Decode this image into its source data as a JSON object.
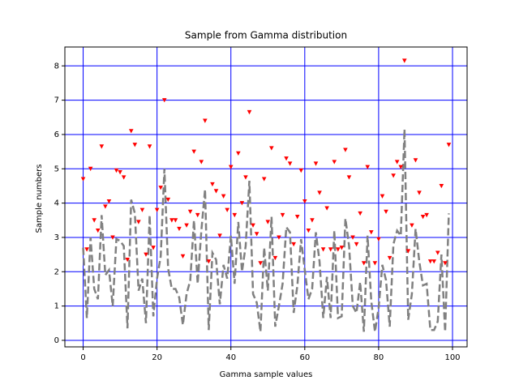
{
  "chart_data": {
    "type": "line",
    "title": "Sample from Gamma distribution",
    "xlabel": "Gamma sample values",
    "ylabel": "Sample numbers",
    "x": [
      0,
      1,
      2,
      3,
      4,
      5,
      6,
      7,
      8,
      9,
      10,
      11,
      12,
      13,
      14,
      15,
      16,
      17,
      18,
      19,
      20,
      21,
      22,
      23,
      24,
      25,
      26,
      27,
      28,
      29,
      30,
      31,
      32,
      33,
      34,
      35,
      36,
      37,
      38,
      39,
      40,
      41,
      42,
      43,
      44,
      45,
      46,
      47,
      48,
      49,
      50,
      51,
      52,
      53,
      54,
      55,
      56,
      57,
      58,
      59,
      60,
      61,
      62,
      63,
      64,
      65,
      66,
      67,
      68,
      69,
      70,
      71,
      72,
      73,
      74,
      75,
      76,
      77,
      78,
      79,
      80,
      81,
      82,
      83,
      84,
      85,
      86,
      87,
      88,
      89,
      90,
      91,
      92,
      93,
      94,
      95,
      96,
      97,
      98,
      99
    ],
    "series": [
      {
        "color": "gray",
        "linestyle": "dashed",
        "values": [
          2.7,
          0.65,
          3.0,
          1.5,
          1.2,
          3.65,
          1.9,
          2.05,
          1.0,
          2.95,
          2.9,
          2.75,
          0.35,
          4.1,
          3.7,
          1.45,
          1.8,
          0.5,
          3.65,
          0.7,
          1.8,
          2.45,
          5.0,
          2.1,
          1.5,
          1.5,
          1.25,
          0.45,
          1.35,
          1.75,
          3.5,
          1.65,
          3.2,
          4.4,
          0.3,
          2.55,
          2.35,
          1.05,
          2.2,
          1.8,
          3.05,
          1.65,
          3.45,
          2.0,
          2.75,
          4.65,
          1.35,
          1.1,
          0.25,
          2.7,
          1.45,
          3.6,
          0.4,
          1.0,
          1.65,
          3.3,
          3.15,
          0.8,
          1.6,
          2.95,
          2.05,
          1.2,
          1.5,
          3.15,
          2.3,
          0.65,
          1.85,
          0.65,
          3.2,
          0.65,
          0.7,
          3.55,
          2.75,
          1.0,
          0.8,
          1.7,
          0.25,
          3.05,
          1.15,
          0.25,
          0.95,
          2.2,
          1.75,
          0.4,
          2.8,
          3.2,
          3.05,
          6.15,
          0.6,
          1.35,
          3.25,
          2.3,
          1.6,
          1.65,
          0.3,
          0.3,
          0.55,
          2.5,
          0.25,
          3.7
        ]
      },
      {
        "color": "red",
        "linestyle": "none",
        "marker": "v",
        "values": [
          4.7,
          2.65,
          5.0,
          3.5,
          3.2,
          5.65,
          3.9,
          4.05,
          3.0,
          4.95,
          4.9,
          4.75,
          2.35,
          6.1,
          5.7,
          3.45,
          3.8,
          2.5,
          5.65,
          2.7,
          3.8,
          4.45,
          7.0,
          4.1,
          3.5,
          3.5,
          3.25,
          2.45,
          3.35,
          3.75,
          5.5,
          3.65,
          5.2,
          6.4,
          2.3,
          4.55,
          4.35,
          3.05,
          4.2,
          3.8,
          5.05,
          3.65,
          5.45,
          4.0,
          4.75,
          6.65,
          3.35,
          3.1,
          2.25,
          4.7,
          3.45,
          5.6,
          2.4,
          3.0,
          3.65,
          5.3,
          5.15,
          2.8,
          3.6,
          4.95,
          4.05,
          3.2,
          3.5,
          5.15,
          4.3,
          2.65,
          3.85,
          2.65,
          5.2,
          2.65,
          2.7,
          5.55,
          4.75,
          3.0,
          2.8,
          3.7,
          2.25,
          5.05,
          3.15,
          2.25,
          2.95,
          4.2,
          3.75,
          2.4,
          4.8,
          5.2,
          5.05,
          8.15,
          2.6,
          3.35,
          5.25,
          4.3,
          3.6,
          3.65,
          2.3,
          2.3,
          2.55,
          4.5,
          2.25,
          5.7
        ]
      }
    ],
    "xlim": [
      -4.95,
      103.95
    ],
    "ylim": [
      -0.19,
      8.55
    ],
    "xticks": [
      0,
      20,
      40,
      60,
      80,
      100
    ],
    "yticks": [
      0,
      1,
      2,
      3,
      4,
      5,
      6,
      7,
      8
    ],
    "grid": true,
    "grid_color": "blue"
  }
}
